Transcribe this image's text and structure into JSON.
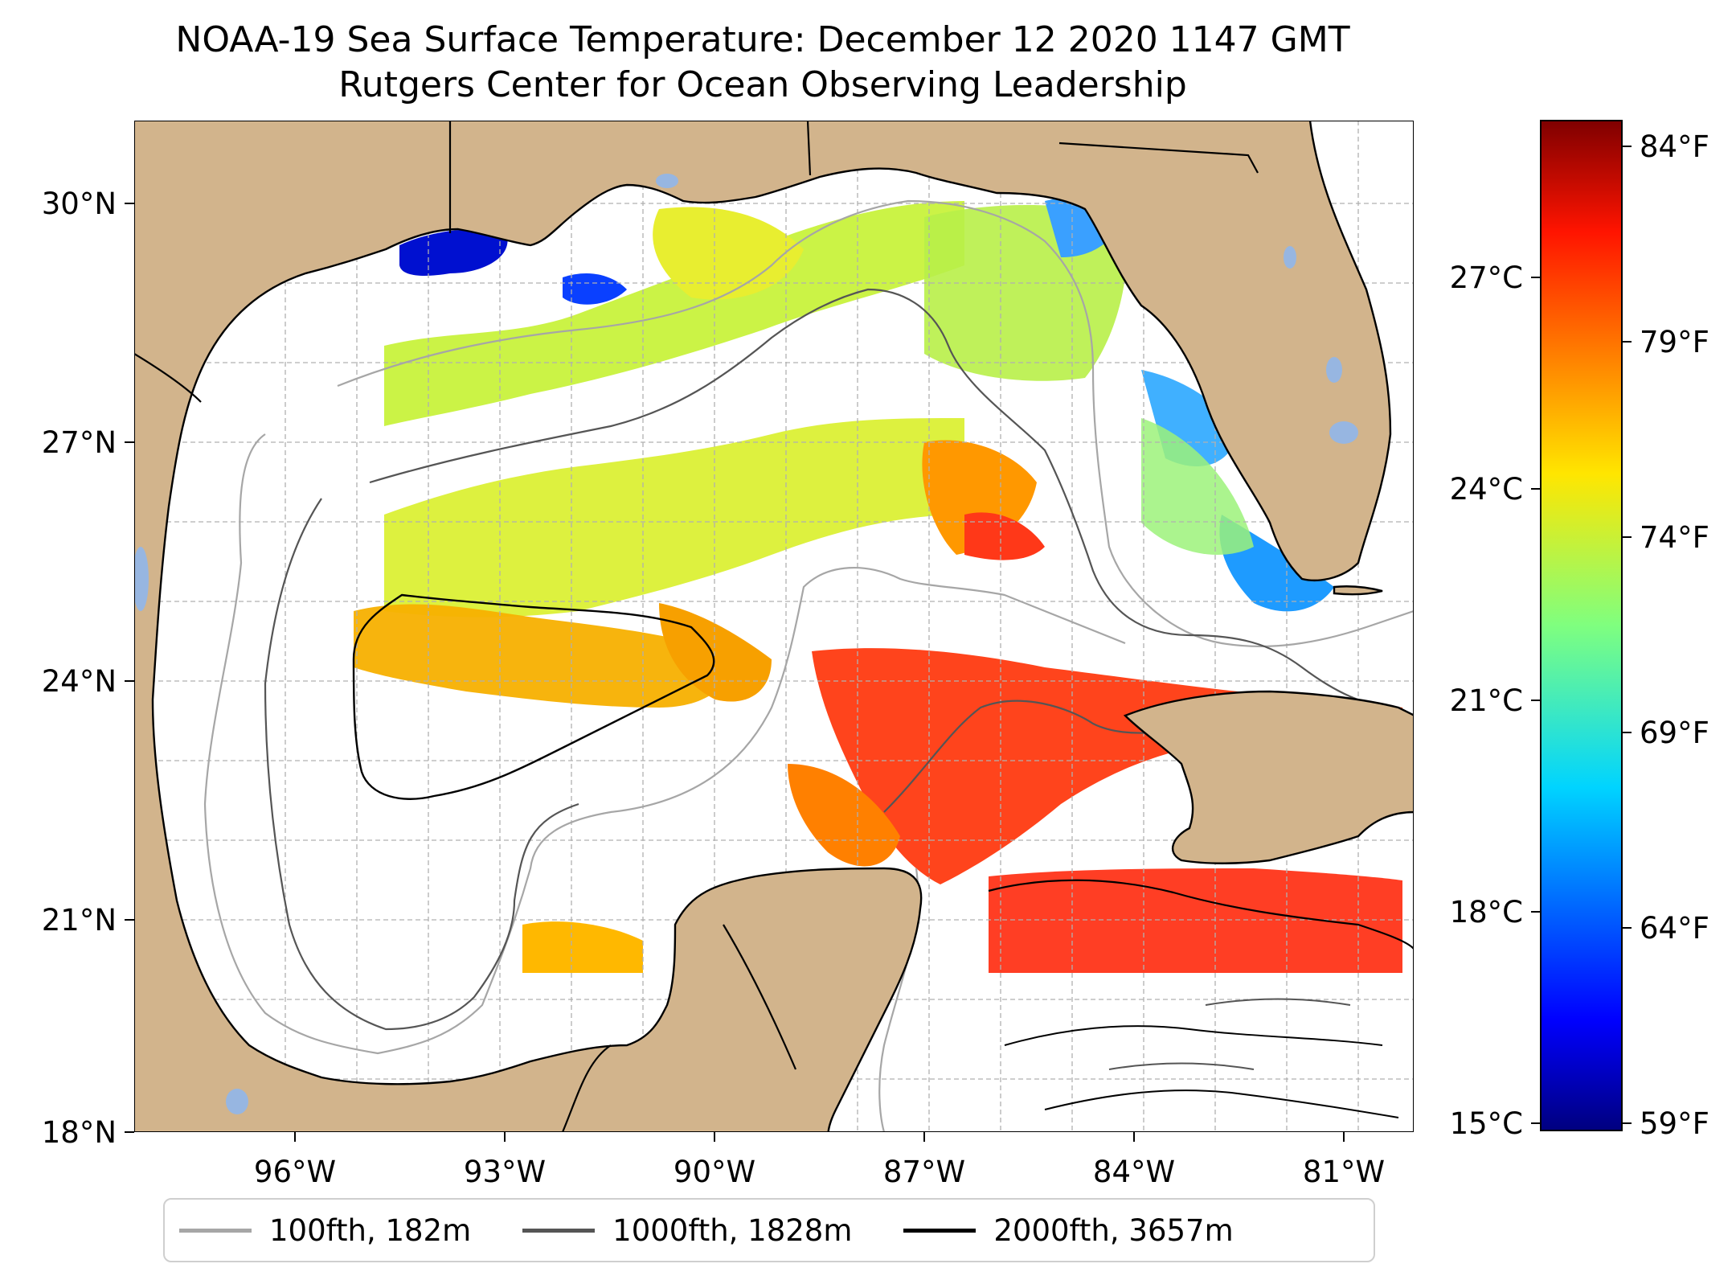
{
  "title": {
    "line1": "NOAA-19 Sea Surface Temperature: December 12 2020 1147 GMT",
    "line2": "Rutgers Center for Ocean Observing Leadership"
  },
  "map": {
    "lon_range": [
      -98.0,
      -80.1
    ],
    "lat_range": [
      18.0,
      31.0
    ],
    "lon_ticks": [
      "96°W",
      "93°W",
      "90°W",
      "87°W",
      "84°W",
      "81°W"
    ],
    "lat_ticks": [
      "30°N",
      "27°N",
      "24°N",
      "21°N",
      "18°N"
    ],
    "colors": {
      "land": "#d2b48c",
      "ocean_nodata": "#ffffff",
      "inland_water": "#97b6e1",
      "coastline": "#000000",
      "gridline": "#b0b0b0"
    }
  },
  "colorbar": {
    "cmap": "jet",
    "celsius_ticks": [
      "27°C",
      "24°C",
      "21°C",
      "18°C",
      "15°C"
    ],
    "fahrenheit_ticks": [
      "84°F",
      "79°F",
      "74°F",
      "69°F",
      "64°F",
      "59°F"
    ]
  },
  "legend": {
    "items": [
      {
        "label": "100fth, 182m",
        "color": "#a6a6a6"
      },
      {
        "label": "1000fth, 1828m",
        "color": "#555555"
      },
      {
        "label": "2000fth, 3657m",
        "color": "#000000"
      }
    ]
  }
}
